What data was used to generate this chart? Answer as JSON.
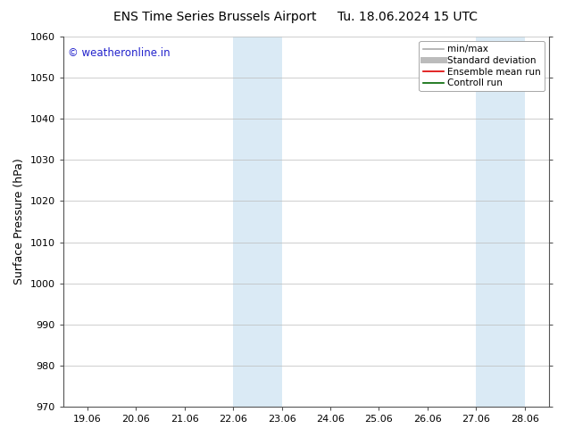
{
  "title_left": "ENS Time Series Brussels Airport",
  "title_right": "Tu. 18.06.2024 15 UTC",
  "ylabel": "Surface Pressure (hPa)",
  "ylim": [
    970,
    1060
  ],
  "yticks": [
    970,
    980,
    990,
    1000,
    1010,
    1020,
    1030,
    1040,
    1050,
    1060
  ],
  "xtick_labels": [
    "19.06",
    "20.06",
    "21.06",
    "22.06",
    "23.06",
    "24.06",
    "25.06",
    "26.06",
    "27.06",
    "28.06"
  ],
  "xtick_positions": [
    0,
    1,
    2,
    3,
    4,
    5,
    6,
    7,
    8,
    9
  ],
  "xlim": [
    -0.5,
    9.5
  ],
  "shaded_regions": [
    {
      "x_start": 3.0,
      "x_end": 4.0,
      "color": "#daeaf5"
    },
    {
      "x_start": 8.0,
      "x_end": 9.0,
      "color": "#daeaf5"
    }
  ],
  "watermark_text": "© weatheronline.in",
  "watermark_color": "#2222cc",
  "watermark_fontsize": 8.5,
  "legend_entries": [
    {
      "label": "min/max",
      "color": "#aaaaaa",
      "lw": 1.2
    },
    {
      "label": "Standard deviation",
      "color": "#bbbbbb",
      "lw": 5
    },
    {
      "label": "Ensemble mean run",
      "color": "#dd0000",
      "lw": 1.2
    },
    {
      "label": "Controll run",
      "color": "#006600",
      "lw": 1.2
    }
  ],
  "bg_color": "#ffffff",
  "grid_color": "#bbbbbb",
  "title_fontsize": 10,
  "ylabel_fontsize": 9,
  "tick_fontsize": 8,
  "legend_fontsize": 7.5,
  "spine_color": "#555555"
}
